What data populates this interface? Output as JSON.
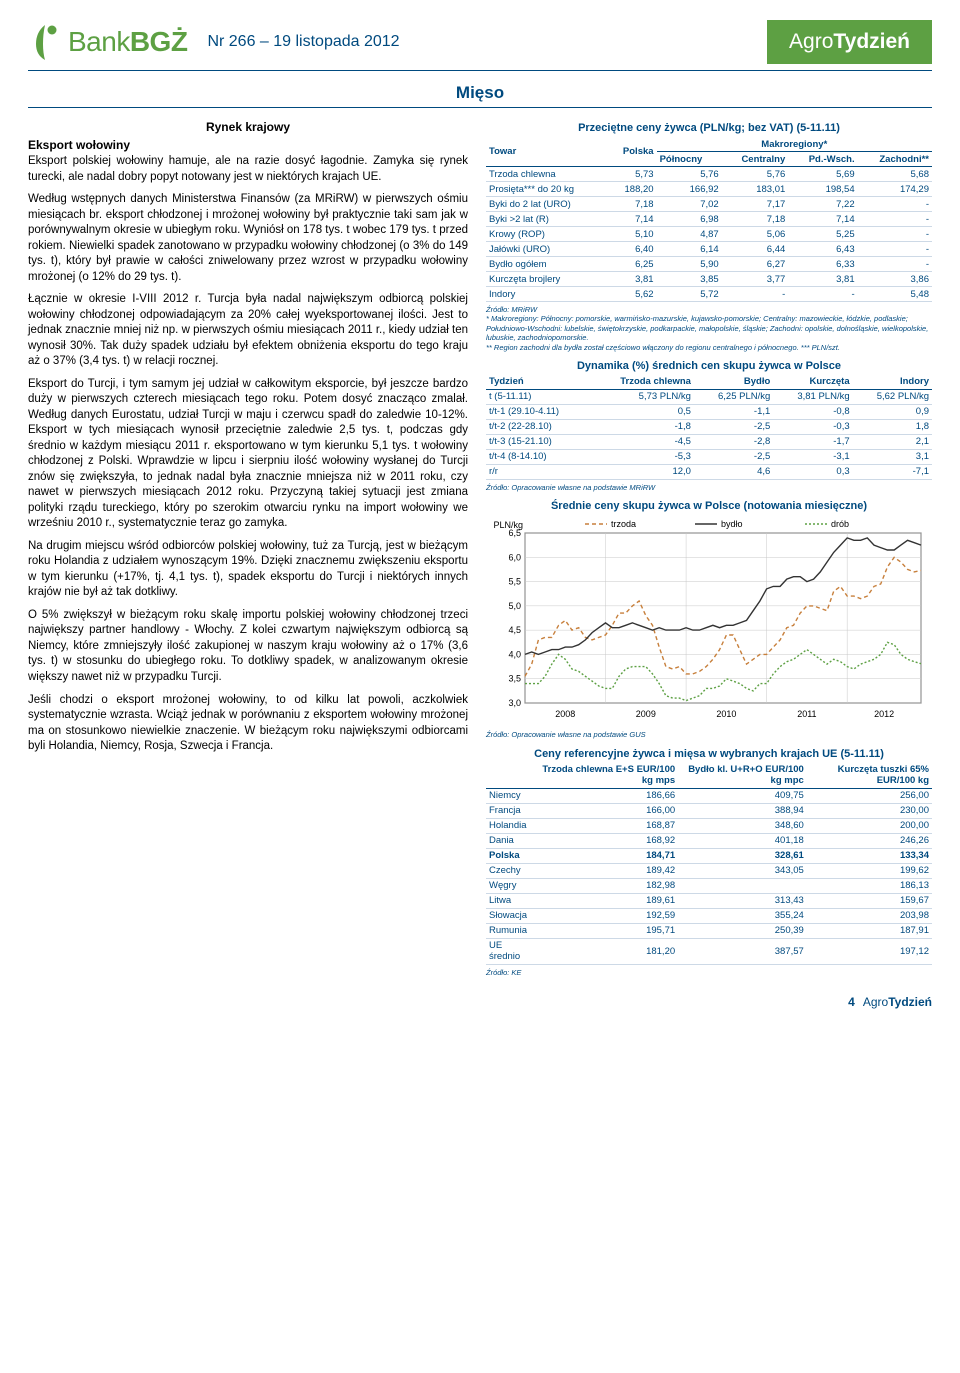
{
  "header": {
    "logo_text_a": "Bank",
    "logo_text_b": "BGŻ",
    "issue_label": "Nr 266 – 19 listopada 2012",
    "brand_a": "Agro",
    "brand_b": "Tydzień"
  },
  "section_title": "Mięso",
  "left": {
    "subhead": "Rynek krajowy",
    "para_title": "Eksport wołowiny",
    "paragraphs": [
      "Eksport polskiej wołowiny hamuje, ale na razie dosyć łagodnie. Zamyka się rynek turecki, ale nadal dobry popyt notowany jest w niektórych krajach UE.",
      "Według wstępnych danych Ministerstwa Finansów (za MRiRW) w pierwszych ośmiu miesiącach br. eksport chłodzonej i mrożonej wołowiny był praktycznie taki sam jak w porównywalnym okresie w ubiegłym roku. Wyniósł on 178 tys. t wobec 179 tys. t przed rokiem. Niewielki spadek zanotowano w przypadku wołowiny chłodzonej (o 3% do 149 tys. t), który był prawie w całości zniwelowany przez wzrost w przypadku wołowiny mrożonej (o 12% do 29 tys. t).",
      "Łącznie w okresie I-VIII 2012 r. Turcja była nadal największym odbiorcą polskiej wołowiny chłodzonej odpowiadającym za 20% całej wyeksportowanej ilości. Jest to jednak znacznie mniej niż np. w pierwszych ośmiu miesiącach 2011 r., kiedy udział ten wynosił 30%. Tak duży spadek udziału był efektem obniżenia eksportu do tego kraju aż o 37% (3,4 tys. t) w relacji rocznej.",
      "Eksport do Turcji, i tym samym jej udział w całkowitym eksporcie, był jeszcze bardzo duży w pierwszych czterech miesiącach tego roku. Potem dosyć znacząco zmalał. Według danych Eurostatu, udział Turcji w maju i czerwcu spadł do zaledwie 10-12%. Eksport w tych miesiącach wynosił przeciętnie zaledwie 2,5 tys. t, podczas gdy średnio w każdym miesiącu 2011 r. eksportowano w tym kierunku 5,1 tys. t wołowiny chłodzonej z Polski. Wprawdzie w lipcu i sierpniu ilość wołowiny wysłanej do Turcji znów się zwiększyła, to jednak nadal była znacznie mniejsza niż w 2011 roku, czy nawet w pierwszych miesiącach 2012 roku. Przyczyną takiej sytuacji jest zmiana polityki rządu tureckiego, który po szerokim otwarciu rynku na import wołowiny we wrześniu 2010 r., systematycznie teraz go zamyka.",
      "Na drugim miejscu wśród odbiorców polskiej wołowiny, tuż za Turcją, jest w bieżącym roku Holandia z udziałem wynoszącym 19%. Dzięki znacznemu zwiększeniu eksportu w tym kierunku (+17%, tj. 4,1 tys. t), spadek eksportu do Turcji i niektórych innych krajów nie był aż tak dotkliwy.",
      "O 5% zwiększył w bieżącym roku skalę importu polskiej wołowiny chłodzonej trzeci największy partner handlowy - Włochy. Z kolei czwartym największym odbiorcą są Niemcy, które zmniejszyły ilość zakupionej w naszym kraju wołowiny aż o 17% (3,6 tys. t) w stosunku do ubiegłego roku. To dotkliwy spadek, w analizowanym okresie większy nawet niż w przypadku Turcji.",
      "Jeśli chodzi o eksport mrożonej wołowiny, to od kilku lat powoli, aczkolwiek systematycznie wzrasta. Wciąż jednak w porównaniu z eksportem wołowiny mrożonej ma on stosunkowo niewielkie znaczenie. W bieżącym roku największymi odbiorcami byli Holandia, Niemcy, Rosja, Szwecja i Francja."
    ]
  },
  "table1": {
    "title": "Przeciętne ceny żywca (PLN/kg; bez VAT) (5-11.11)",
    "head1": [
      "Towar",
      "Polska",
      "Makroregiony*"
    ],
    "head2": [
      "",
      "",
      "Północny",
      "Centralny",
      "Pd.-Wsch.",
      "Zachodni**"
    ],
    "rows": [
      [
        "Trzoda chlewna",
        "5,73",
        "5,76",
        "5,76",
        "5,69",
        "5,68"
      ],
      [
        "Prosięta*** do 20 kg",
        "188,20",
        "166,92",
        "183,01",
        "198,54",
        "174,29"
      ],
      [
        "Byki do 2 lat (URO)",
        "7,18",
        "7,02",
        "7,17",
        "7,22",
        "-"
      ],
      [
        "Byki >2 lat (R)",
        "7,14",
        "6,98",
        "7,18",
        "7,14",
        "-"
      ],
      [
        "Krowy (ROP)",
        "5,10",
        "4,87",
        "5,06",
        "5,25",
        "-"
      ],
      [
        "Jałówki (URO)",
        "6,40",
        "6,14",
        "6,44",
        "6,43",
        "-"
      ],
      [
        "Bydło ogółem",
        "6,25",
        "5,90",
        "6,27",
        "6,33",
        "-"
      ],
      [
        "Kurczęta brojlery",
        "3,81",
        "3,85",
        "3,77",
        "3,81",
        "3,86"
      ],
      [
        "Indory",
        "5,62",
        "5,72",
        "-",
        "-",
        "5,48"
      ]
    ],
    "footnote": "Źródło: MRiRW\n* Makroregiony: Północny: pomorskie, warmińsko-mazurskie, kujawsko-pomorskie; Centralny: mazowieckie, łódzkie, podlaskie; Południowo-Wschodni: lubelskie, świętokrzyskie, podkarpackie, małopolskie, śląskie; Zachodni: opolskie, dolnośląskie, wielkopolskie, lubuskie, zachodniopomorskie.\n** Region zachodni dla bydła został częściowo włączony do regionu centralnego i północnego. *** PLN/szt."
  },
  "table2": {
    "title": "Dynamika (%) średnich cen skupu żywca w Polsce",
    "head": [
      "Tydzień",
      "Trzoda chlewna",
      "Bydło",
      "Kurczęta",
      "Indory"
    ],
    "rows": [
      [
        "t (5-11.11)",
        "5,73 PLN/kg",
        "6,25 PLN/kg",
        "3,81 PLN/kg",
        "5,62 PLN/kg"
      ],
      [
        "t/t-1 (29.10-4.11)",
        "0,5",
        "-1,1",
        "-0,8",
        "0,9"
      ],
      [
        "t/t-2 (22-28.10)",
        "-1,8",
        "-2,5",
        "-0,3",
        "1,8"
      ],
      [
        "t/t-3 (15-21.10)",
        "-4,5",
        "-2,8",
        "-1,7",
        "2,1"
      ],
      [
        "t/t-4 (8-14.10)",
        "-5,3",
        "-2,5",
        "-3,1",
        "3,1"
      ],
      [
        "r/r",
        "12,0",
        "4,6",
        "0,3",
        "-7,1"
      ]
    ],
    "footnote": "Źródło: Opracowanie własne na podstawie MRiRW"
  },
  "chart": {
    "title": "Średnie ceny skupu żywca w Polsce (notowania miesięczne)",
    "y_label": "PLN/kg",
    "y_min": 3.0,
    "y_max": 6.5,
    "y_step": 0.5,
    "x_labels": [
      "2008",
      "2009",
      "2010",
      "2011",
      "2012"
    ],
    "x_ticks": [
      0,
      12,
      24,
      36,
      48,
      59
    ],
    "n_points": 60,
    "background_color": "#ffffff",
    "grid_color": "#c8c8c8",
    "axis_color": "#000000",
    "font_size_axis": 9,
    "series": [
      {
        "name": "trzoda",
        "color": "#c77f3b",
        "dash": "4,3",
        "values": [
          3.55,
          3.8,
          4.3,
          4.35,
          4.35,
          4.6,
          4.7,
          4.5,
          4.55,
          4.35,
          4.3,
          4.35,
          4.4,
          4.6,
          4.85,
          4.85,
          5.0,
          5.1,
          4.8,
          4.6,
          4.15,
          3.75,
          3.7,
          3.75,
          3.6,
          3.6,
          3.65,
          3.75,
          3.9,
          4.1,
          4.4,
          4.4,
          4.1,
          3.8,
          3.9,
          4.0,
          4.0,
          4.15,
          4.3,
          4.55,
          4.6,
          4.85,
          5.0,
          5.0,
          4.95,
          4.9,
          5.3,
          5.4,
          5.2,
          5.2,
          5.15,
          5.2,
          5.4,
          5.45,
          5.8,
          6.0,
          5.9,
          5.75,
          5.7,
          5.73
        ]
      },
      {
        "name": "bydło",
        "color": "#333333",
        "dash": "",
        "values": [
          4.0,
          4.05,
          4.0,
          4.05,
          4.1,
          4.1,
          4.15,
          4.15,
          4.2,
          4.3,
          4.45,
          4.55,
          4.65,
          4.55,
          4.55,
          4.6,
          4.65,
          4.6,
          4.55,
          4.5,
          4.55,
          4.5,
          4.5,
          4.5,
          4.55,
          4.5,
          4.5,
          4.55,
          4.6,
          4.55,
          4.6,
          4.6,
          4.65,
          4.7,
          4.9,
          5.1,
          5.35,
          5.4,
          5.4,
          5.55,
          5.6,
          5.6,
          5.5,
          5.55,
          5.7,
          5.9,
          6.1,
          6.25,
          6.4,
          6.35,
          6.35,
          6.4,
          6.25,
          6.2,
          6.15,
          6.15,
          6.25,
          6.35,
          6.3,
          6.25
        ]
      },
      {
        "name": "drób",
        "color": "#5da043",
        "dash": "2,2",
        "values": [
          3.4,
          3.4,
          3.4,
          3.55,
          3.8,
          4.0,
          3.9,
          3.7,
          3.65,
          3.55,
          3.45,
          3.35,
          3.3,
          3.3,
          3.55,
          3.7,
          3.75,
          3.75,
          3.75,
          3.6,
          3.4,
          3.15,
          3.1,
          3.1,
          3.05,
          3.1,
          3.15,
          3.3,
          3.3,
          3.35,
          3.5,
          3.45,
          3.4,
          3.3,
          3.25,
          3.4,
          3.4,
          3.6,
          3.75,
          3.85,
          3.9,
          4.0,
          4.1,
          4.0,
          3.9,
          3.8,
          3.9,
          3.85,
          3.75,
          3.7,
          3.8,
          3.85,
          3.9,
          4.0,
          4.25,
          4.2,
          4.0,
          3.9,
          3.85,
          3.81
        ]
      }
    ],
    "legend": [
      "trzoda",
      "bydło",
      "drób"
    ],
    "footnote": "Źródło: Opracowanie własne na podstawie GUS"
  },
  "table3": {
    "title": "Ceny referencyjne żywca i mięsa w wybranych krajach UE (5-11.11)",
    "head": [
      "",
      "Trzoda chlewna E+S EUR/100 kg mps",
      "Bydło kl. U+R+O EUR/100 kg mpc",
      "Kurczęta tuszki 65% EUR/100 kg"
    ],
    "rows": [
      [
        "Niemcy",
        "186,66",
        "409,75",
        "256,00"
      ],
      [
        "Francja",
        "166,00",
        "388,94",
        "230,00"
      ],
      [
        "Holandia",
        "168,87",
        "348,60",
        "200,00"
      ],
      [
        "Dania",
        "168,92",
        "401,18",
        "246,26"
      ],
      [
        "Polska",
        "184,71",
        "328,61",
        "133,34"
      ],
      [
        "Czechy",
        "189,42",
        "343,05",
        "199,62"
      ],
      [
        "Węgry",
        "182,98",
        "",
        "186,13"
      ],
      [
        "Litwa",
        "189,61",
        "313,43",
        "159,67"
      ],
      [
        "Słowacja",
        "192,59",
        "355,24",
        "203,98"
      ],
      [
        "Rumunia",
        "195,71",
        "250,39",
        "187,91"
      ],
      [
        "UE średnio",
        "181,20",
        "387,57",
        "197,12"
      ]
    ],
    "bold_row_idx": 4,
    "footnote": "Źródło: KE"
  },
  "footer": {
    "page_num": "4",
    "brand_a": "Agro",
    "brand_b": "Tydzień"
  }
}
